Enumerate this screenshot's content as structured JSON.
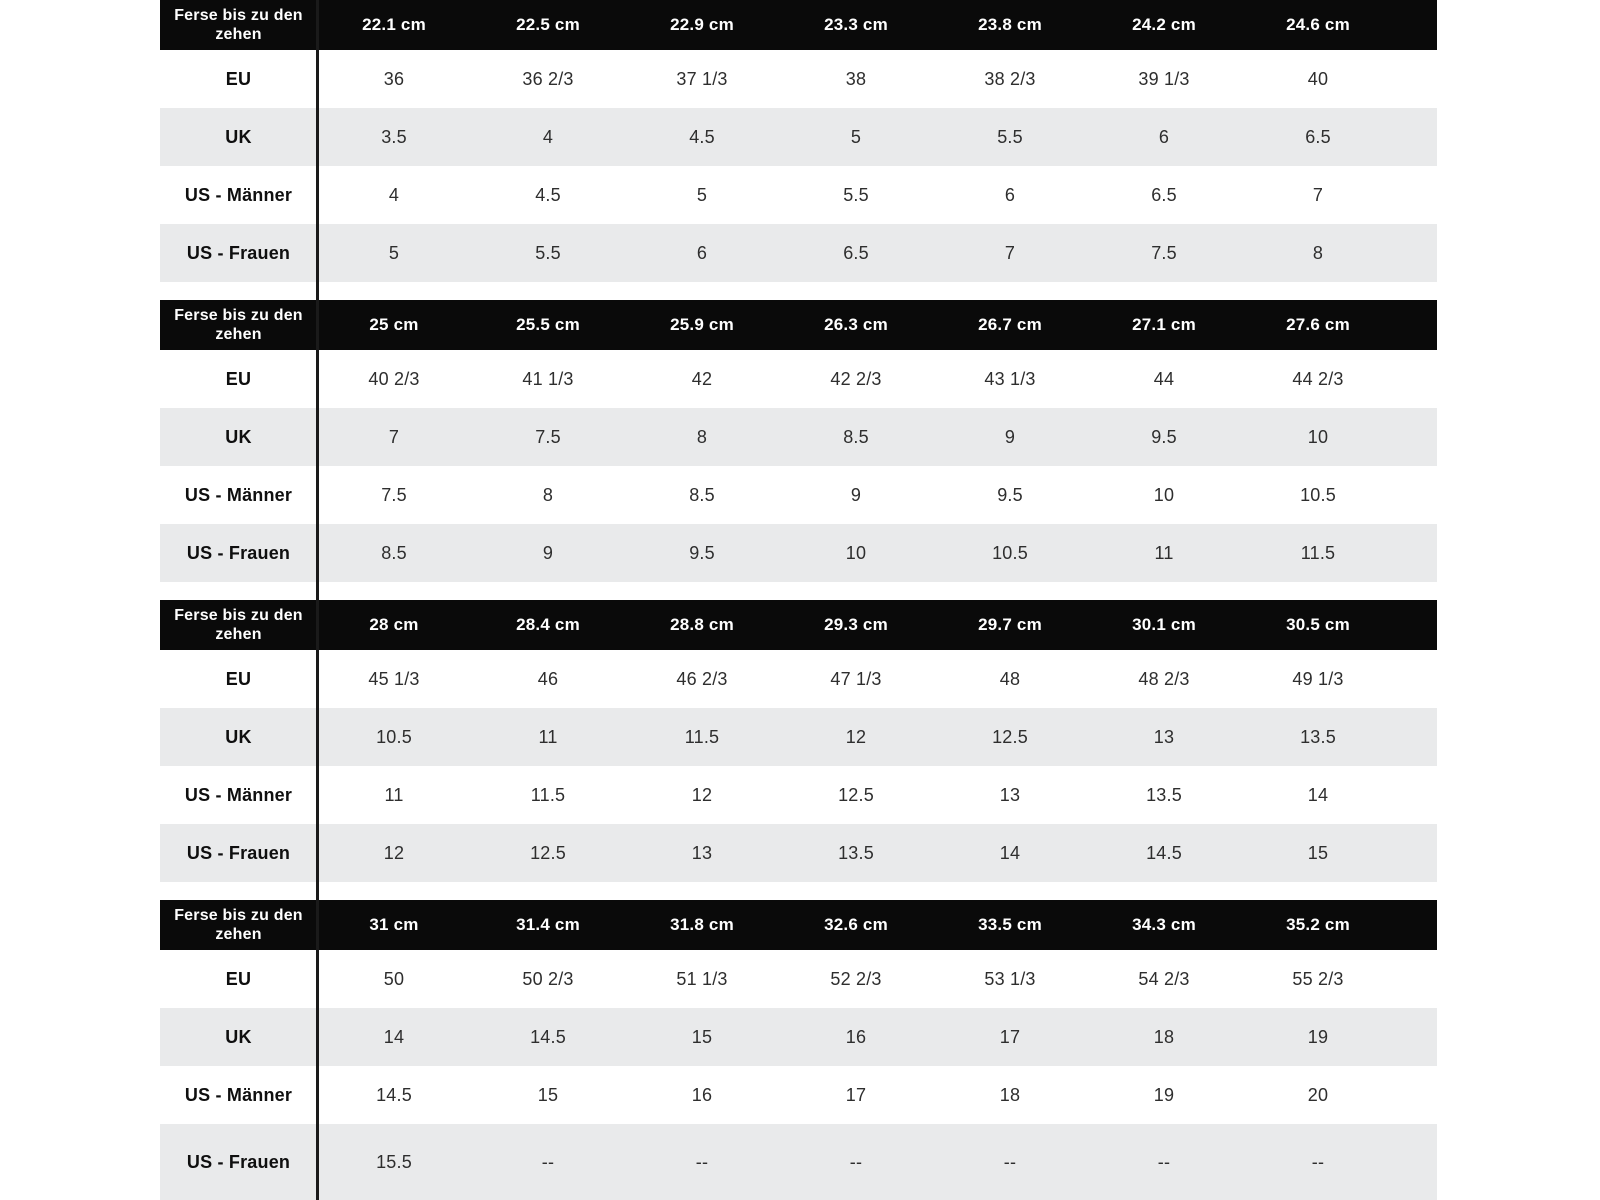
{
  "colors": {
    "header_bg": "#0a0a0a",
    "header_text": "#ffffff",
    "alt_row_bg": "#e9eaeb",
    "row_bg": "#ffffff",
    "divider_line": "#1a1a1a",
    "page_bg": "#ffffff"
  },
  "chart_data": [
    {
      "type": "table",
      "header_label": "Ferse bis zu den zehen",
      "columns": [
        "22.1 cm",
        "22.5 cm",
        "22.9 cm",
        "23.3 cm",
        "23.8 cm",
        "24.2 cm",
        "24.6 cm"
      ],
      "rows": [
        {
          "label": "EU",
          "values": [
            "36",
            "36 2/3",
            "37 1/3",
            "38",
            "38 2/3",
            "39 1/3",
            "40"
          ]
        },
        {
          "label": "UK",
          "values": [
            "3.5",
            "4",
            "4.5",
            "5",
            "5.5",
            "6",
            "6.5"
          ]
        },
        {
          "label": "US - Männer",
          "values": [
            "4",
            "4.5",
            "5",
            "5.5",
            "6",
            "6.5",
            "7"
          ]
        },
        {
          "label": "US - Frauen",
          "values": [
            "5",
            "5.5",
            "6",
            "6.5",
            "7",
            "7.5",
            "8"
          ]
        }
      ]
    },
    {
      "type": "table",
      "header_label": "Ferse bis zu den zehen",
      "columns": [
        "25 cm",
        "25.5 cm",
        "25.9 cm",
        "26.3 cm",
        "26.7 cm",
        "27.1 cm",
        "27.6 cm"
      ],
      "rows": [
        {
          "label": "EU",
          "values": [
            "40 2/3",
            "41 1/3",
            "42",
            "42 2/3",
            "43 1/3",
            "44",
            "44 2/3"
          ]
        },
        {
          "label": "UK",
          "values": [
            "7",
            "7.5",
            "8",
            "8.5",
            "9",
            "9.5",
            "10"
          ]
        },
        {
          "label": "US - Männer",
          "values": [
            "7.5",
            "8",
            "8.5",
            "9",
            "9.5",
            "10",
            "10.5"
          ]
        },
        {
          "label": "US - Frauen",
          "values": [
            "8.5",
            "9",
            "9.5",
            "10",
            "10.5",
            "11",
            "11.5"
          ]
        }
      ]
    },
    {
      "type": "table",
      "header_label": "Ferse bis zu den zehen",
      "columns": [
        "28 cm",
        "28.4 cm",
        "28.8 cm",
        "29.3 cm",
        "29.7 cm",
        "30.1 cm",
        "30.5 cm"
      ],
      "rows": [
        {
          "label": "EU",
          "values": [
            "45 1/3",
            "46",
            "46 2/3",
            "47 1/3",
            "48",
            "48 2/3",
            "49 1/3"
          ]
        },
        {
          "label": "UK",
          "values": [
            "10.5",
            "11",
            "11.5",
            "12",
            "12.5",
            "13",
            "13.5"
          ]
        },
        {
          "label": "US - Männer",
          "values": [
            "11",
            "11.5",
            "12",
            "12.5",
            "13",
            "13.5",
            "14"
          ]
        },
        {
          "label": "US - Frauen",
          "values": [
            "12",
            "12.5",
            "13",
            "13.5",
            "14",
            "14.5",
            "15"
          ]
        }
      ]
    },
    {
      "type": "table",
      "header_label": "Ferse bis zu den zehen",
      "columns": [
        "31 cm",
        "31.4 cm",
        "31.8 cm",
        "32.6 cm",
        "33.5 cm",
        "34.3 cm",
        "35.2 cm"
      ],
      "rows": [
        {
          "label": "EU",
          "values": [
            "50",
            "50 2/3",
            "51 1/3",
            "52 2/3",
            "53 1/3",
            "54 2/3",
            "55 2/3"
          ]
        },
        {
          "label": "UK",
          "values": [
            "14",
            "14.5",
            "15",
            "16",
            "17",
            "18",
            "19"
          ]
        },
        {
          "label": "US - Männer",
          "values": [
            "14.5",
            "15",
            "16",
            "17",
            "18",
            "19",
            "20"
          ]
        },
        {
          "label": "US - Frauen",
          "values": [
            "15.5",
            "--",
            "--",
            "--",
            "--",
            "--",
            "--"
          ]
        }
      ]
    }
  ]
}
